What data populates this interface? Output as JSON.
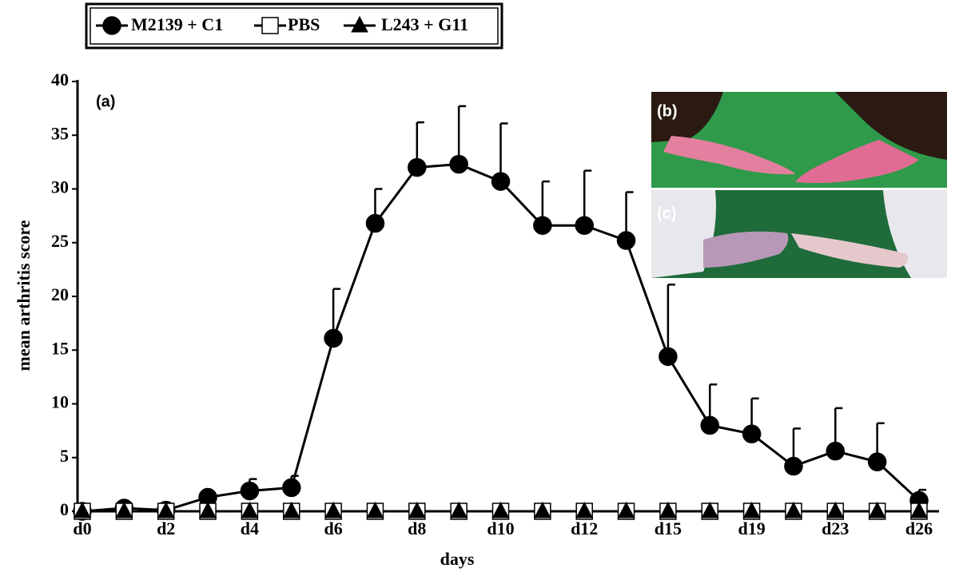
{
  "chart_data": {
    "type": "line",
    "panel_label": "(a)",
    "x_label": "days",
    "y_label": "mean arthritis score",
    "categories": [
      "d0",
      null,
      "d2",
      null,
      "d4",
      null,
      "d6",
      null,
      "d8",
      null,
      "d10",
      null,
      "d12",
      null,
      "d15",
      null,
      "d19",
      null,
      "d23",
      null,
      "d26"
    ],
    "series": [
      {
        "name": "M2139 + C1",
        "color": "#000000",
        "marker": "circle",
        "values": [
          0,
          0.3,
          0.1,
          1.3,
          1.9,
          2.2,
          16.1,
          26.8,
          32.0,
          32.3,
          30.7,
          26.6,
          26.6,
          25.2,
          14.4,
          8.0,
          7.2,
          4.2,
          5.6,
          4.6,
          1.0
        ],
        "errors": [
          0,
          0,
          0,
          0.3,
          1.1,
          1.1,
          4.6,
          3.2,
          4.2,
          5.4,
          5.4,
          4.1,
          5.1,
          4.5,
          6.7,
          3.8,
          3.3,
          3.5,
          4.0,
          3.6,
          1.0
        ]
      },
      {
        "name": "PBS",
        "color": "#ffffff",
        "marker": "square",
        "values": [
          0,
          0,
          0,
          0,
          0,
          0,
          0,
          0,
          0,
          0,
          0,
          0,
          0,
          0,
          0,
          0,
          0,
          0,
          0,
          0,
          0
        ]
      },
      {
        "name": "L243 + G11",
        "color": "#000000",
        "marker": "triangle",
        "values": [
          0,
          0,
          0,
          0,
          0,
          0,
          0,
          0,
          0,
          0,
          0,
          0,
          0,
          0,
          0,
          0,
          0,
          0,
          0,
          0,
          0
        ]
      }
    ],
    "ylim": [
      0,
      40
    ],
    "yticks": [
      0,
      5,
      10,
      15,
      20,
      25,
      30,
      35,
      40
    ],
    "insets": [
      {
        "label": "(b)"
      },
      {
        "label": "(c)"
      }
    ]
  }
}
